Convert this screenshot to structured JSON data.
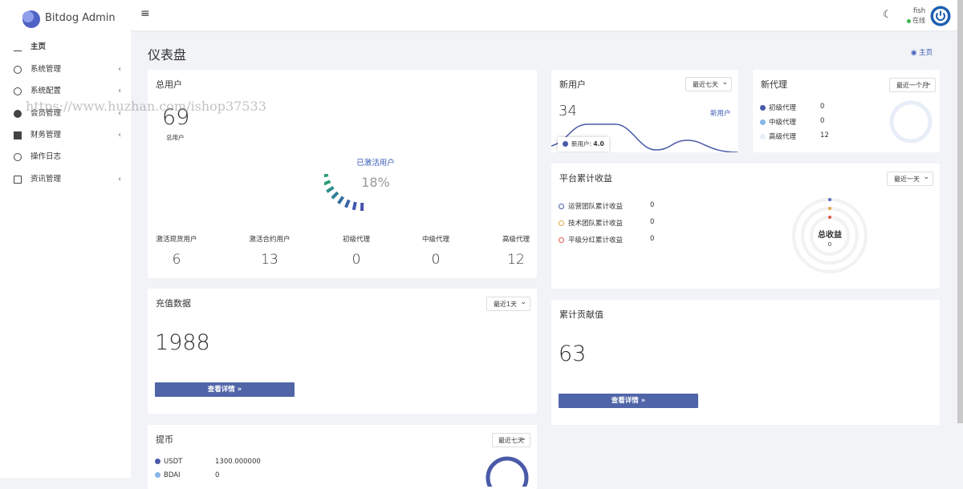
{
  "brand": "Bitdog Admin",
  "sidebar": [
    "主页",
    "系统管理",
    "系统配置",
    "会员管理",
    "财务管理",
    "操作日志",
    "资讯管理"
  ],
  "user": {
    "name": "fish",
    "status": "在线"
  },
  "page_title": "仪表盘",
  "breadcrumb": "主页",
  "total_users": {
    "title": "总用户",
    "value": 69,
    "caption": "总用户",
    "gauge_label": "已激活用户",
    "gauge_percent": "18%",
    "stats": [
      {
        "label": "激活现货用户",
        "value": 6
      },
      {
        "label": "激活合约用户",
        "value": 13
      },
      {
        "label": "初级代理",
        "value": 0
      },
      {
        "label": "中级代理",
        "value": 0
      },
      {
        "label": "高级代理",
        "value": 12
      }
    ]
  },
  "new_users": {
    "title": "新用户",
    "filter": "最近七天",
    "value": 34,
    "label": "新用户",
    "tooltip_label": "新用户:",
    "tooltip_value": "4.0"
  },
  "new_agents": {
    "title": "新代理",
    "filter": "最近一个月",
    "items": [
      {
        "label": "初级代理",
        "value": 0
      },
      {
        "label": "中级代理",
        "value": 0
      },
      {
        "label": "高级代理",
        "value": 12
      }
    ]
  },
  "platform_income": {
    "title": "平台累计收益",
    "filter": "最近一天",
    "items": [
      {
        "label": "运营团队累计收益",
        "value": 0
      },
      {
        "label": "技术团队累计收益",
        "value": 0
      },
      {
        "label": "平级分红累计收益",
        "value": 0
      }
    ],
    "center_label": "总收益",
    "center_value": 0
  },
  "recharge": {
    "title": "充值数据",
    "filter": "最近1天",
    "value": 1988,
    "button": "查看详情 »"
  },
  "contribution": {
    "title": "累计贡献值",
    "value": 63,
    "button": "查看详情 »"
  },
  "withdraw": {
    "title": "提币",
    "filter": "最近七天",
    "items": [
      {
        "label": "USDT",
        "value": "1300.000000"
      },
      {
        "label": "BDAI",
        "value": "0"
      }
    ]
  },
  "watermark": "https://www.huzhan.com/ishop37533"
}
